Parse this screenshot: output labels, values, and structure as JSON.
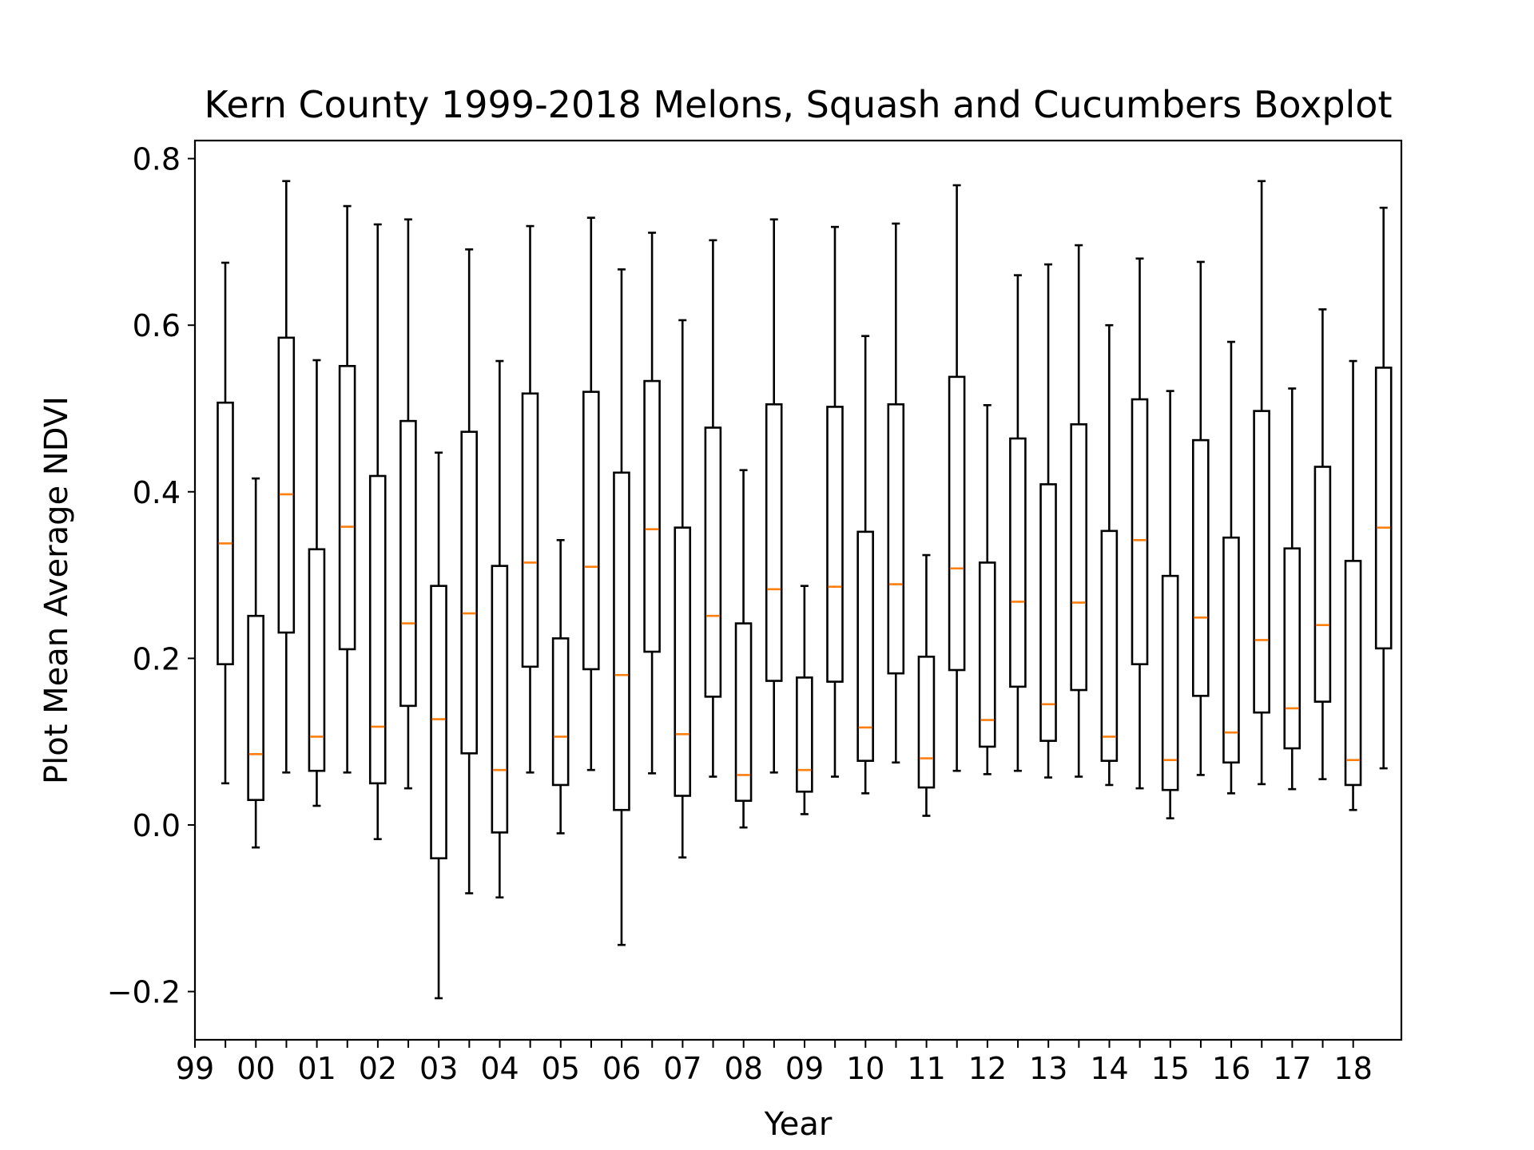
{
  "chart_data": {
    "type": "boxplot",
    "title": "Kern County 1999-2018 Melons, Squash and Cucumbers Boxplot",
    "xlabel": "Year",
    "ylabel": "Plot Mean Average NDVI",
    "ylim": [
      -0.26,
      0.82
    ],
    "yticks": [
      {
        "value": -0.2,
        "label": "−0.2"
      },
      {
        "value": 0.0,
        "label": "0.0"
      },
      {
        "value": 0.2,
        "label": "0.2"
      },
      {
        "value": 0.4,
        "label": "0.4"
      },
      {
        "value": 0.6,
        "label": "0.6"
      },
      {
        "value": 0.8,
        "label": "0.8"
      }
    ],
    "xtick_labels": [
      "99",
      "00",
      "01",
      "02",
      "03",
      "04",
      "05",
      "06",
      "07",
      "08",
      "09",
      "10",
      "11",
      "12",
      "13",
      "14",
      "15",
      "16",
      "17",
      "18"
    ],
    "grid": false,
    "box_color": "#000000",
    "median_color": "#ff7f0e",
    "boxes": [
      {
        "min": 0.05,
        "q1": 0.193,
        "median": 0.338,
        "q3": 0.507,
        "max": 0.675
      },
      {
        "min": -0.027,
        "q1": 0.03,
        "median": 0.085,
        "q3": 0.251,
        "max": 0.416
      },
      {
        "min": 0.063,
        "q1": 0.231,
        "median": 0.397,
        "q3": 0.585,
        "max": 0.773
      },
      {
        "min": 0.023,
        "q1": 0.065,
        "median": 0.106,
        "q3": 0.331,
        "max": 0.558
      },
      {
        "min": 0.063,
        "q1": 0.211,
        "median": 0.358,
        "q3": 0.551,
        "max": 0.743
      },
      {
        "min": -0.017,
        "q1": 0.05,
        "median": 0.118,
        "q3": 0.419,
        "max": 0.721
      },
      {
        "min": 0.044,
        "q1": 0.143,
        "median": 0.242,
        "q3": 0.485,
        "max": 0.727
      },
      {
        "min": -0.208,
        "q1": -0.04,
        "median": 0.127,
        "q3": 0.287,
        "max": 0.447
      },
      {
        "min": -0.082,
        "q1": 0.086,
        "median": 0.254,
        "q3": 0.472,
        "max": 0.691
      },
      {
        "min": -0.087,
        "q1": -0.009,
        "median": 0.066,
        "q3": 0.311,
        "max": 0.557
      },
      {
        "min": 0.063,
        "q1": 0.19,
        "median": 0.315,
        "q3": 0.518,
        "max": 0.719
      },
      {
        "min": -0.01,
        "q1": 0.048,
        "median": 0.106,
        "q3": 0.224,
        "max": 0.342
      },
      {
        "min": 0.066,
        "q1": 0.187,
        "median": 0.31,
        "q3": 0.52,
        "max": 0.729
      },
      {
        "min": -0.144,
        "q1": 0.018,
        "median": 0.18,
        "q3": 0.423,
        "max": 0.667
      },
      {
        "min": 0.062,
        "q1": 0.208,
        "median": 0.355,
        "q3": 0.533,
        "max": 0.711
      },
      {
        "min": -0.039,
        "q1": 0.035,
        "median": 0.109,
        "q3": 0.357,
        "max": 0.606
      },
      {
        "min": 0.058,
        "q1": 0.154,
        "median": 0.251,
        "q3": 0.477,
        "max": 0.702
      },
      {
        "min": -0.003,
        "q1": 0.029,
        "median": 0.06,
        "q3": 0.242,
        "max": 0.426
      },
      {
        "min": 0.063,
        "q1": 0.173,
        "median": 0.283,
        "q3": 0.505,
        "max": 0.727
      },
      {
        "min": 0.013,
        "q1": 0.04,
        "median": 0.066,
        "q3": 0.177,
        "max": 0.287
      },
      {
        "min": 0.058,
        "q1": 0.172,
        "median": 0.286,
        "q3": 0.502,
        "max": 0.718
      },
      {
        "min": 0.038,
        "q1": 0.077,
        "median": 0.117,
        "q3": 0.352,
        "max": 0.587
      },
      {
        "min": 0.075,
        "q1": 0.182,
        "median": 0.289,
        "q3": 0.505,
        "max": 0.722
      },
      {
        "min": 0.011,
        "q1": 0.045,
        "median": 0.08,
        "q3": 0.202,
        "max": 0.324
      },
      {
        "min": 0.065,
        "q1": 0.186,
        "median": 0.308,
        "q3": 0.538,
        "max": 0.768
      },
      {
        "min": 0.061,
        "q1": 0.094,
        "median": 0.126,
        "q3": 0.315,
        "max": 0.504
      },
      {
        "min": 0.065,
        "q1": 0.166,
        "median": 0.268,
        "q3": 0.464,
        "max": 0.66
      },
      {
        "min": 0.057,
        "q1": 0.101,
        "median": 0.145,
        "q3": 0.409,
        "max": 0.673
      },
      {
        "min": 0.058,
        "q1": 0.162,
        "median": 0.267,
        "q3": 0.481,
        "max": 0.696
      },
      {
        "min": 0.048,
        "q1": 0.077,
        "median": 0.106,
        "q3": 0.353,
        "max": 0.6
      },
      {
        "min": 0.044,
        "q1": 0.193,
        "median": 0.342,
        "q3": 0.511,
        "max": 0.68
      },
      {
        "min": 0.008,
        "q1": 0.042,
        "median": 0.078,
        "q3": 0.299,
        "max": 0.521
      },
      {
        "min": 0.06,
        "q1": 0.155,
        "median": 0.249,
        "q3": 0.462,
        "max": 0.676
      },
      {
        "min": 0.038,
        "q1": 0.075,
        "median": 0.111,
        "q3": 0.345,
        "max": 0.58
      },
      {
        "min": 0.049,
        "q1": 0.135,
        "median": 0.222,
        "q3": 0.497,
        "max": 0.773
      },
      {
        "min": 0.043,
        "q1": 0.092,
        "median": 0.14,
        "q3": 0.332,
        "max": 0.524
      },
      {
        "min": 0.055,
        "q1": 0.148,
        "median": 0.24,
        "q3": 0.43,
        "max": 0.619
      },
      {
        "min": 0.018,
        "q1": 0.048,
        "median": 0.078,
        "q3": 0.317,
        "max": 0.557
      },
      {
        "min": 0.068,
        "q1": 0.212,
        "median": 0.357,
        "q3": 0.549,
        "max": 0.741
      }
    ]
  }
}
